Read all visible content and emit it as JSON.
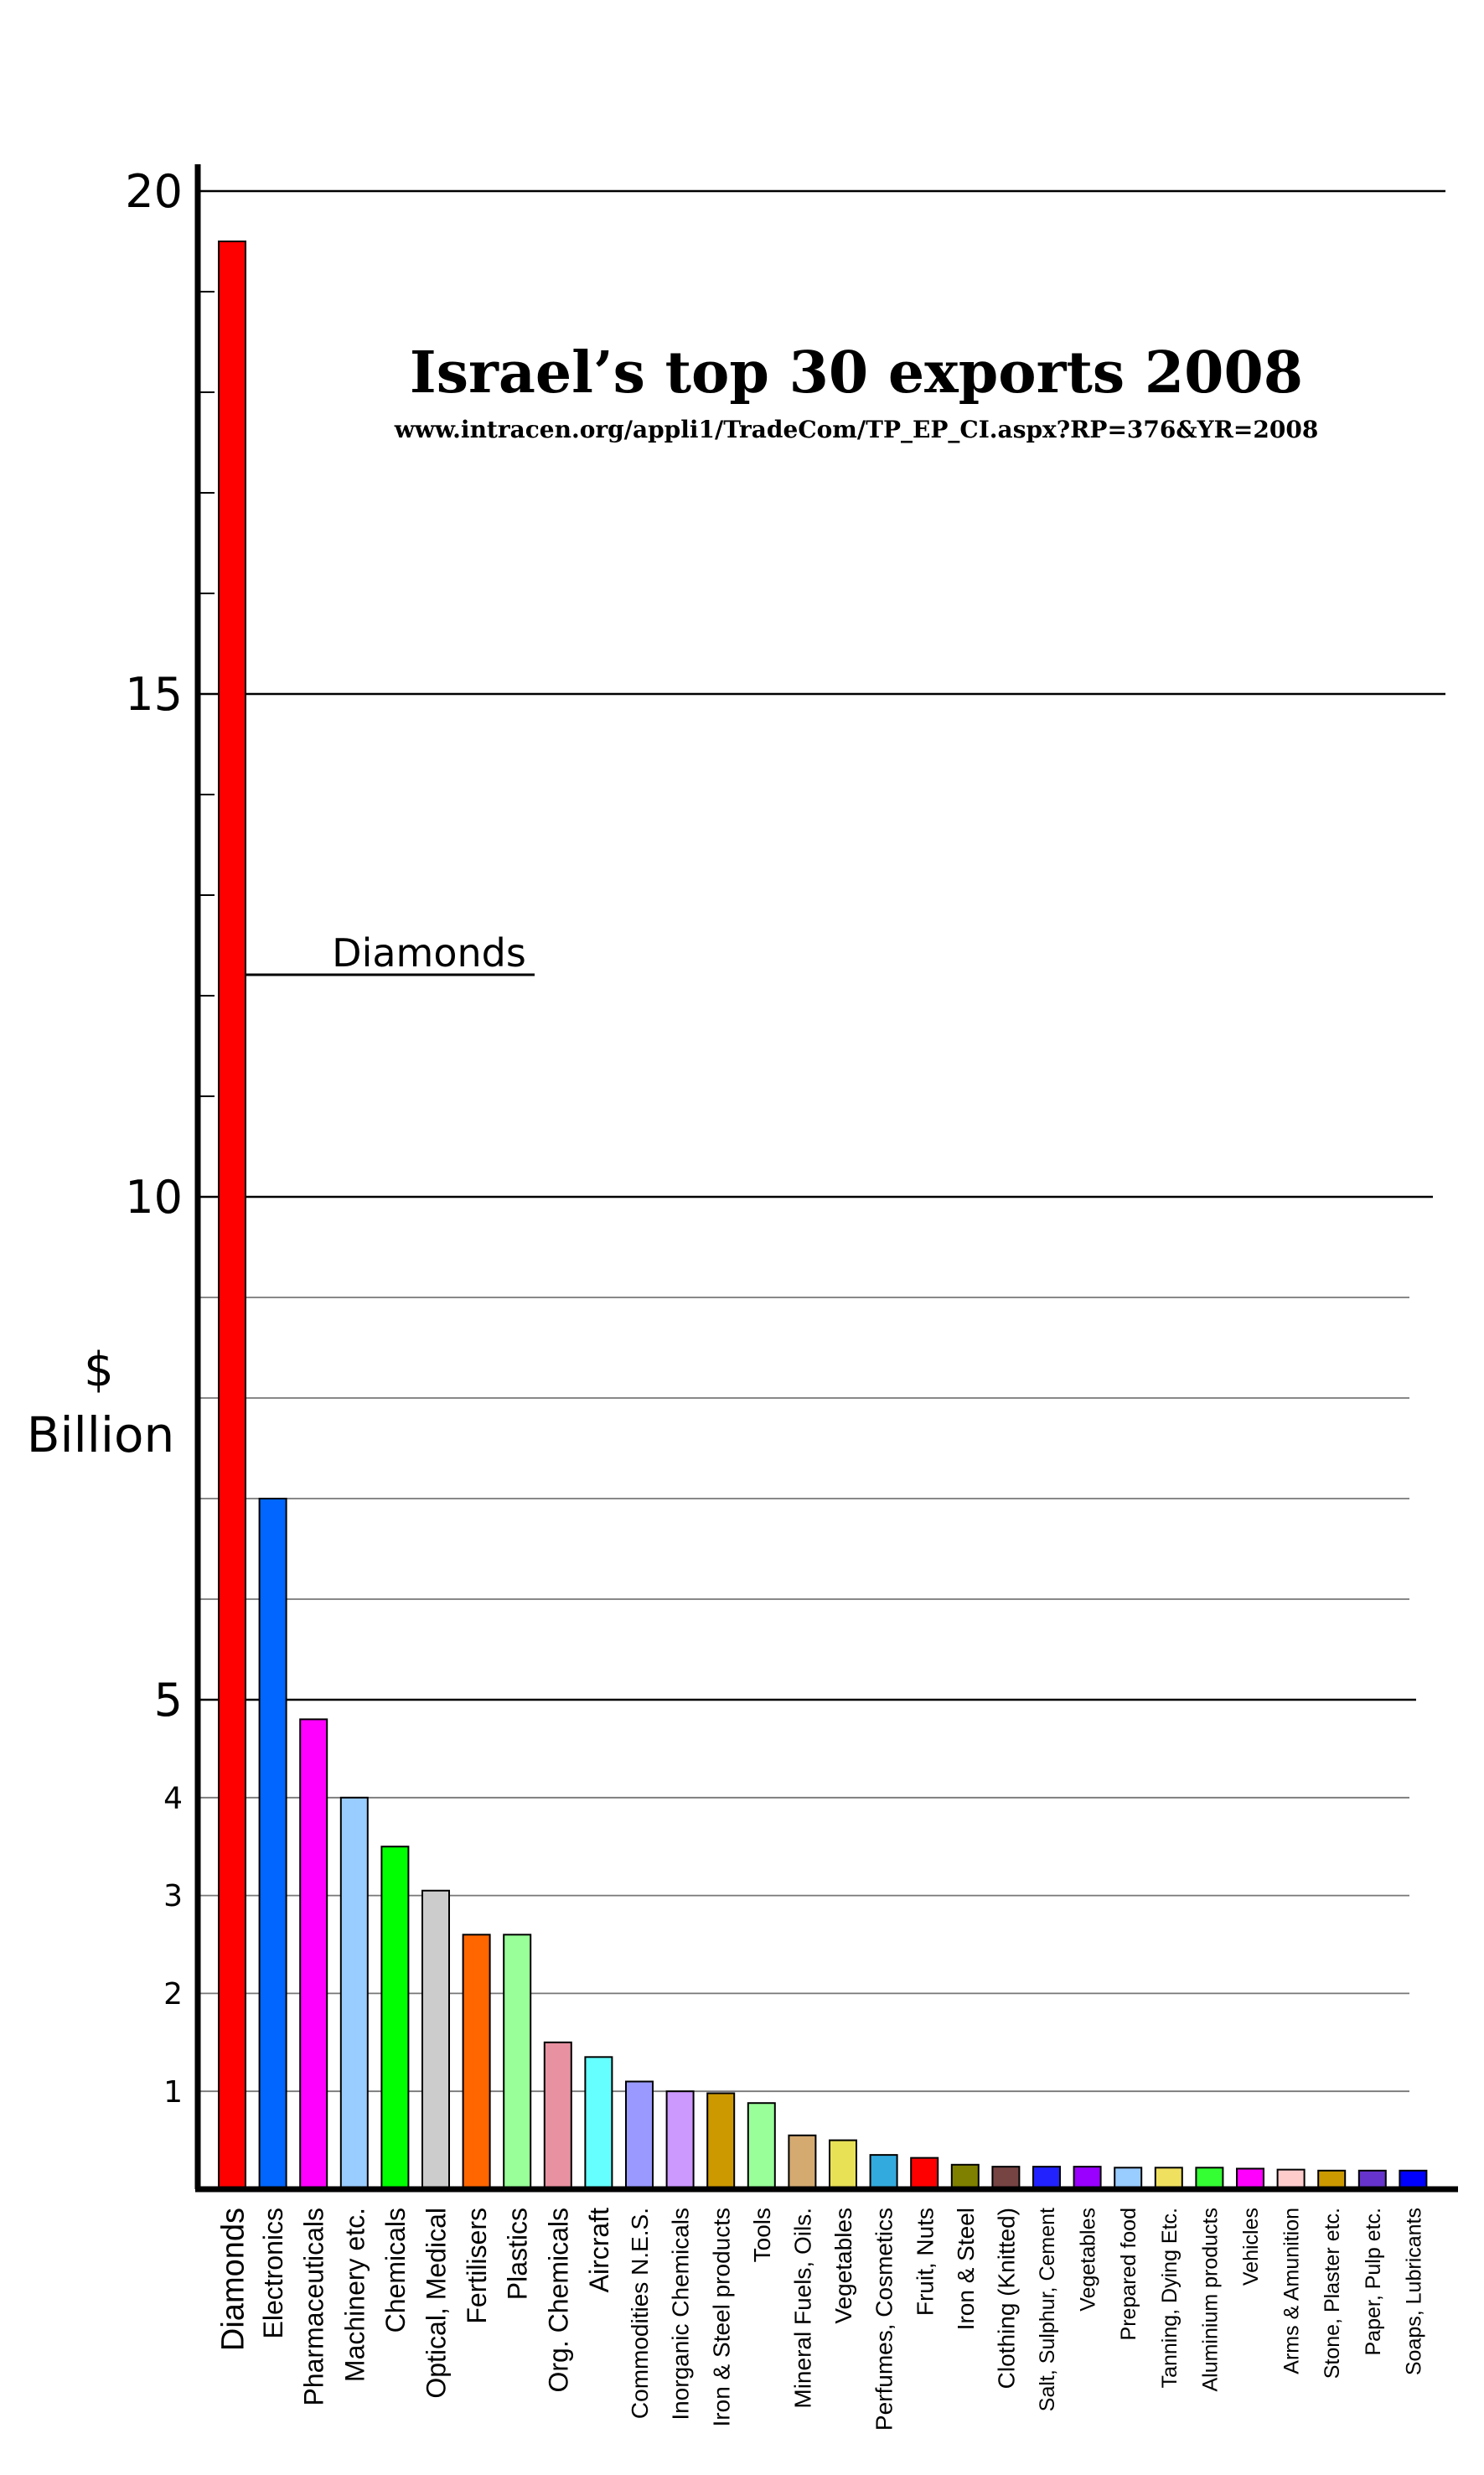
{
  "chart_data": {
    "type": "bar",
    "title": "Israel’s top 30 exports 2008",
    "subtitle": "www.intracen.org/appli1/TradeCom/TP_EP_CI.aspx?RP=376&YR=2008",
    "ylabel_line1": "$",
    "ylabel_line2": "Billion",
    "annotation": "Diamonds",
    "yticks": [
      "1",
      "2",
      "3",
      "4",
      "5",
      "10",
      "15",
      "20"
    ],
    "ylim": [
      0,
      20
    ],
    "grid": true,
    "categories": [
      "Diamonds",
      "Electronics",
      "Pharmaceuticals",
      "Machinery etc.",
      "Chemicals",
      "Optical, Medical",
      "Fertilisers",
      "Plastics",
      "Org. Chemicals",
      "Aircraft",
      "Commodities N.E.S.",
      "Inorganic Chemicals",
      "Iron & Steel products",
      "Tools",
      "Mineral Fuels, Oils.",
      "Vegetables",
      "Perfumes, Cosmetics",
      "Fruit, Nuts",
      "Iron & Steel",
      "Clothing (Knitted)",
      "Salt, Sulphur, Cement",
      "Vegetables",
      "Prepared food",
      "Tanning, Dying Etc.",
      "Aluminium products",
      "Vehicles",
      "Arms & Amunition",
      "Stone, Plaster etc.",
      "Paper, Pulp etc.",
      "Soaps, Lubricants"
    ],
    "values": [
      19.5,
      7.0,
      4.8,
      4.0,
      3.5,
      3.05,
      2.6,
      2.6,
      1.5,
      1.35,
      1.1,
      1.0,
      0.98,
      0.88,
      0.55,
      0.5,
      0.35,
      0.32,
      0.25,
      0.23,
      0.23,
      0.23,
      0.22,
      0.22,
      0.22,
      0.21,
      0.2,
      0.19,
      0.19,
      0.19
    ],
    "colors": [
      "#ff0000",
      "#0066ff",
      "#ff00ff",
      "#99ccff",
      "#00ff00",
      "#cccccc",
      "#ff6600",
      "#99ff99",
      "#e891a0",
      "#66ffff",
      "#9999ff",
      "#cc99ff",
      "#cc9900",
      "#99ff99",
      "#d4aa70",
      "#e8e055",
      "#33aadd",
      "#ff0000",
      "#808000",
      "#774444",
      "#2222ff",
      "#9900ff",
      "#99ccff",
      "#f0e060",
      "#33ff33",
      "#ff00ff",
      "#ffcccc",
      "#cc9900",
      "#6633cc",
      "#0000ff"
    ]
  }
}
